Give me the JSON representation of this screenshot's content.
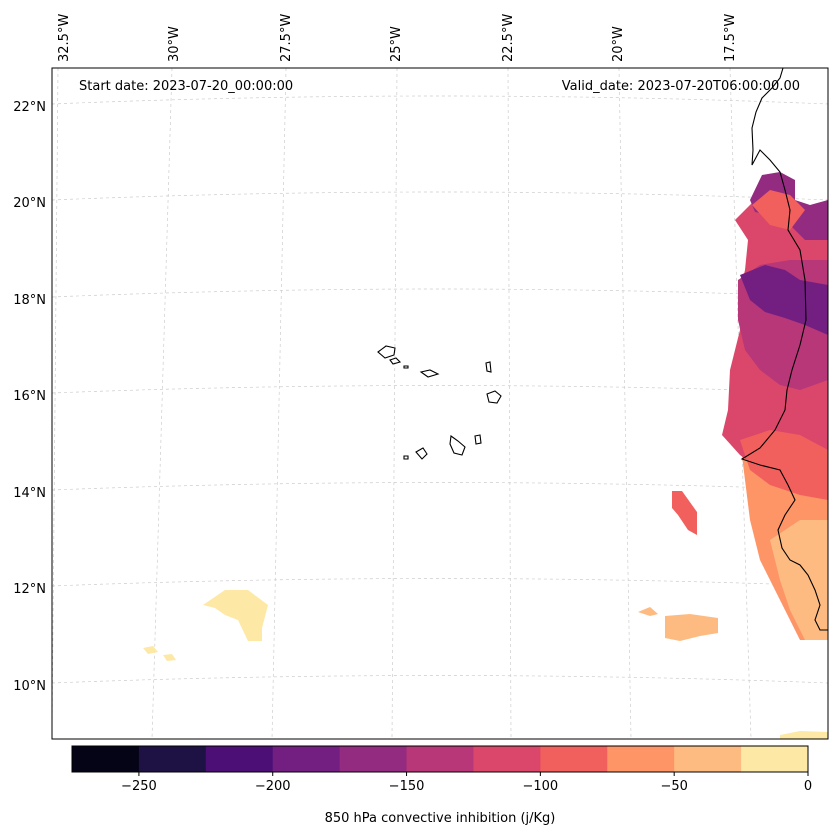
{
  "header": {
    "start_date": "Start date: 2023-07-20_00:00:00",
    "valid_date": "Valid_date: 2023-07-20T06:00:00.00"
  },
  "longitude_labels": [
    "32.5°W",
    "30°W",
    "27.5°W",
    "25°W",
    "22.5°W",
    "20°W",
    "17.5°W"
  ],
  "latitude_labels": [
    "22°N",
    "20°N",
    "18°N",
    "16°N",
    "14°N",
    "12°N",
    "10°N"
  ],
  "colorbar": {
    "label": "850 hPa convective inhibition (j/Kg)",
    "ticks": [
      "−250",
      "−200",
      "−150",
      "−100",
      "−50",
      "0"
    ],
    "tick_values": [
      -250,
      -200,
      -150,
      -100,
      -50,
      0
    ],
    "levels": [
      -275,
      -250,
      -225,
      -200,
      -175,
      -150,
      -125,
      -100,
      -75,
      -50,
      -25,
      0
    ],
    "colors": [
      "#050417",
      "#1e1244",
      "#4c0f76",
      "#721f81",
      "#932b80",
      "#b73779",
      "#db476a",
      "#f1605d",
      "#fd9567",
      "#febb81",
      "#fde8a5"
    ]
  },
  "map_data": {
    "extent_lon": [
      -33,
      -16
    ],
    "extent_lat": [
      8.9,
      22.8
    ],
    "variable": "850 hPa convective inhibition",
    "units": "j/Kg"
  }
}
